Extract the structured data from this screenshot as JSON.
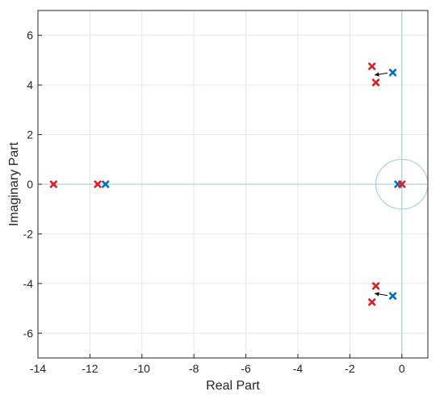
{
  "chart_data": {
    "type": "scatter",
    "title": "",
    "xlabel": "Real Part",
    "ylabel": "Imaginary Part",
    "xlim": [
      -14,
      1
    ],
    "ylim": [
      -7,
      7
    ],
    "x_ticks": [
      -14,
      -12,
      -10,
      -8,
      -6,
      -4,
      -2,
      0
    ],
    "y_ticks": [
      -6,
      -4,
      -2,
      0,
      2,
      4,
      6
    ],
    "x_tick_labels": [
      "-14",
      "-12",
      "-10",
      "-8",
      "-6",
      "-4",
      "-2",
      "0"
    ],
    "y_tick_labels": [
      "-6",
      "-4",
      "-2",
      "0",
      "2",
      "4",
      "6"
    ],
    "grid": true,
    "legend": "none",
    "marker": "x",
    "series": [
      {
        "color": "#0072BD",
        "points": [
          {
            "x": -11.4,
            "y": 0
          },
          {
            "x": -0.15,
            "y": 0
          },
          {
            "x": -0.35,
            "y": 4.5
          },
          {
            "x": -0.35,
            "y": -4.5
          }
        ]
      },
      {
        "color": "#E41A1C",
        "points": [
          {
            "x": -13.4,
            "y": 0
          },
          {
            "x": -11.7,
            "y": 0
          },
          {
            "x": 0.0,
            "y": 0
          },
          {
            "x": -1.15,
            "y": 4.75
          },
          {
            "x": -1.0,
            "y": 4.1
          },
          {
            "x": -1.0,
            "y": -4.1
          },
          {
            "x": -1.15,
            "y": -4.75
          }
        ]
      }
    ],
    "arrows": [
      {
        "from": [
          -0.55,
          4.48
        ],
        "to": [
          -1.05,
          4.4
        ]
      },
      {
        "from": [
          -0.55,
          -4.48
        ],
        "to": [
          -1.05,
          -4.4
        ]
      }
    ],
    "reference_circle": {
      "center": [
        0,
        0
      ],
      "radius": 1
    },
    "zero_lines": true,
    "line_color": "#9ecae1"
  }
}
